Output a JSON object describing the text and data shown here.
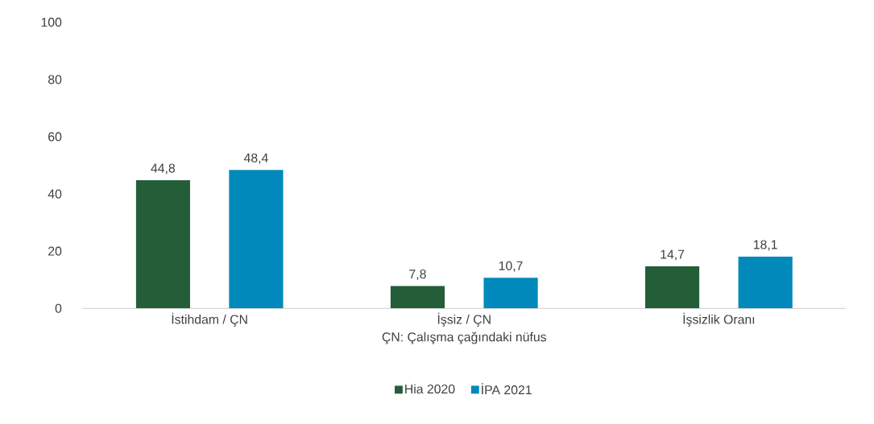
{
  "chart_data": {
    "type": "bar",
    "xlabel": "ÇN: Çalışma çağındaki nüfus",
    "categories": [
      "İstihdam / ÇN",
      "İşsiz / ÇN",
      "İşsizlik Oranı"
    ],
    "series": [
      {
        "name": "Hia 2020",
        "color": "#235e39",
        "values": [
          44.8,
          7.8,
          14.7
        ],
        "value_labels": [
          "44,8",
          "7,8",
          "14,7"
        ]
      },
      {
        "name": "İPA 2021",
        "color": "#0089ba",
        "values": [
          48.4,
          10.7,
          18.1
        ],
        "value_labels": [
          "48,4",
          "10,7",
          "18,1"
        ]
      }
    ],
    "ylim": [
      0,
      100
    ],
    "yticks": [
      0,
      20,
      40,
      60,
      80,
      100
    ],
    "grid": false,
    "legend": "bottom"
  }
}
